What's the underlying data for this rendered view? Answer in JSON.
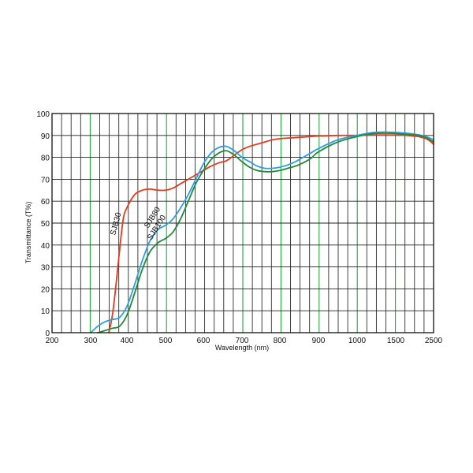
{
  "chart_data": {
    "type": "line",
    "title": "",
    "xlabel": "Wavelength (nm)",
    "ylabel": "Transmittance (T%)",
    "xlim": [
      200,
      2500
    ],
    "ylim": [
      0,
      100
    ],
    "x_ticks": [
      "200",
      "300",
      "400",
      "500",
      "600",
      "700",
      "800",
      "900",
      "1000",
      "1500",
      "2500"
    ],
    "y_ticks": [
      "0",
      "10",
      "20",
      "30",
      "40",
      "50",
      "60",
      "70",
      "80",
      "90",
      "100"
    ],
    "grid": true,
    "legend": "none",
    "series": [
      {
        "name": "SJB30",
        "color": "#e23b1f",
        "points": [
          [
            350,
            0
          ],
          [
            360,
            8
          ],
          [
            370,
            22
          ],
          [
            380,
            38
          ],
          [
            390,
            52
          ],
          [
            400,
            57
          ],
          [
            420,
            63
          ],
          [
            440,
            65
          ],
          [
            460,
            65.5
          ],
          [
            480,
            65
          ],
          [
            500,
            65
          ],
          [
            520,
            66
          ],
          [
            540,
            68
          ],
          [
            560,
            70
          ],
          [
            580,
            72
          ],
          [
            600,
            74
          ],
          [
            620,
            76
          ],
          [
            640,
            77.5
          ],
          [
            660,
            78.5
          ],
          [
            680,
            81
          ],
          [
            700,
            83.5
          ],
          [
            720,
            85
          ],
          [
            740,
            86
          ],
          [
            760,
            87
          ],
          [
            780,
            88
          ],
          [
            800,
            88.5
          ],
          [
            840,
            89
          ],
          [
            880,
            89.5
          ],
          [
            900,
            89.7
          ],
          [
            950,
            90
          ],
          [
            1000,
            90
          ],
          [
            1200,
            90.2
          ],
          [
            1500,
            90.2
          ],
          [
            1800,
            90
          ],
          [
            2100,
            89.5
          ],
          [
            2300,
            88.5
          ],
          [
            2400,
            87.5
          ],
          [
            2500,
            86
          ]
        ]
      },
      {
        "name": "SJB80",
        "color": "#2d9fe0",
        "points": [
          [
            300,
            0
          ],
          [
            320,
            3
          ],
          [
            340,
            5
          ],
          [
            360,
            6
          ],
          [
            380,
            7
          ],
          [
            400,
            12
          ],
          [
            420,
            22
          ],
          [
            440,
            33
          ],
          [
            460,
            42
          ],
          [
            480,
            47
          ],
          [
            500,
            49
          ],
          [
            520,
            52
          ],
          [
            540,
            57
          ],
          [
            560,
            63
          ],
          [
            580,
            70
          ],
          [
            600,
            77
          ],
          [
            620,
            82
          ],
          [
            640,
            84.5
          ],
          [
            660,
            85
          ],
          [
            680,
            83
          ],
          [
            700,
            80
          ],
          [
            720,
            78
          ],
          [
            740,
            76
          ],
          [
            760,
            75
          ],
          [
            780,
            75
          ],
          [
            800,
            75.5
          ],
          [
            820,
            76.5
          ],
          [
            840,
            78
          ],
          [
            860,
            80
          ],
          [
            880,
            82
          ],
          [
            900,
            84
          ],
          [
            950,
            88
          ],
          [
            1000,
            90
          ],
          [
            1200,
            91.3
          ],
          [
            1400,
            91.5
          ],
          [
            1800,
            91
          ],
          [
            2100,
            90.3
          ],
          [
            2300,
            89.5
          ],
          [
            2500,
            88
          ]
        ]
      },
      {
        "name": "SJB100",
        "color": "#238a3a",
        "points": [
          [
            320,
            0
          ],
          [
            340,
            1
          ],
          [
            360,
            2
          ],
          [
            380,
            3
          ],
          [
            400,
            8
          ],
          [
            420,
            18
          ],
          [
            440,
            29
          ],
          [
            460,
            37
          ],
          [
            480,
            41
          ],
          [
            500,
            43
          ],
          [
            520,
            46
          ],
          [
            540,
            52
          ],
          [
            560,
            60
          ],
          [
            580,
            68
          ],
          [
            600,
            74
          ],
          [
            620,
            79
          ],
          [
            640,
            82
          ],
          [
            660,
            83
          ],
          [
            680,
            81
          ],
          [
            700,
            78
          ],
          [
            720,
            75.5
          ],
          [
            740,
            74
          ],
          [
            760,
            73.5
          ],
          [
            780,
            73.5
          ],
          [
            800,
            74
          ],
          [
            820,
            75
          ],
          [
            840,
            76
          ],
          [
            860,
            77.5
          ],
          [
            880,
            79.5
          ],
          [
            900,
            82.5
          ],
          [
            950,
            87
          ],
          [
            1000,
            89.5
          ],
          [
            1200,
            90.8
          ],
          [
            1400,
            91
          ],
          [
            1800,
            90.5
          ],
          [
            2100,
            90
          ],
          [
            2300,
            89
          ],
          [
            2500,
            87
          ]
        ]
      }
    ]
  }
}
